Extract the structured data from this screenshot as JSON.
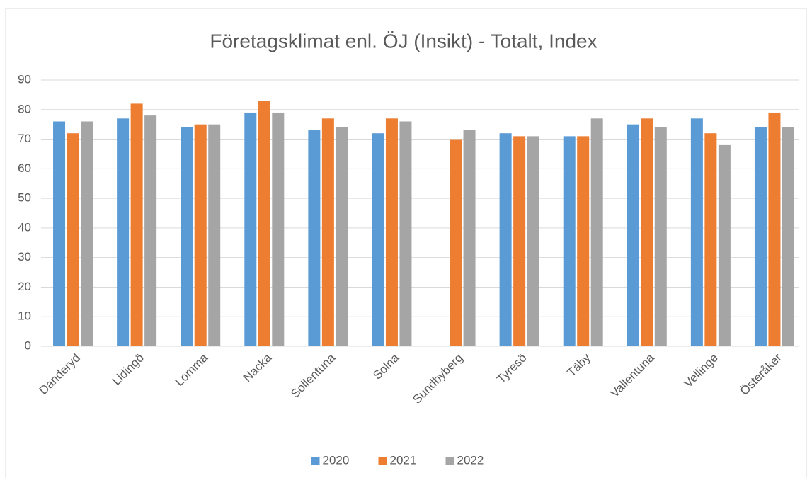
{
  "chart_data": {
    "type": "bar",
    "title": "Företagsklimat enl. ÖJ (Insikt) - Totalt, Index",
    "categories": [
      "Danderyd",
      "Lidingö",
      "Lomma",
      "Nacka",
      "Sollentuna",
      "Solna",
      "Sundbyberg",
      "Tyresö",
      "Täby",
      "Vallentuna",
      "Vellinge",
      "Österåker"
    ],
    "series": [
      {
        "name": "2020",
        "color": "#5b9bd5",
        "values": [
          76,
          77,
          74,
          79,
          73,
          72,
          null,
          72,
          71,
          75,
          77,
          74
        ]
      },
      {
        "name": "2021",
        "color": "#ed7d31",
        "values": [
          72,
          82,
          75,
          83,
          77,
          77,
          70,
          71,
          71,
          77,
          72,
          79
        ]
      },
      {
        "name": "2022",
        "color": "#a5a5a5",
        "values": [
          76,
          78,
          75,
          79,
          74,
          76,
          73,
          71,
          77,
          74,
          68,
          74
        ]
      }
    ],
    "ylim": [
      0,
      90
    ],
    "yticks": [
      0,
      10,
      20,
      30,
      40,
      50,
      60,
      70,
      80,
      90
    ],
    "grid": true,
    "legend": "bottom"
  }
}
